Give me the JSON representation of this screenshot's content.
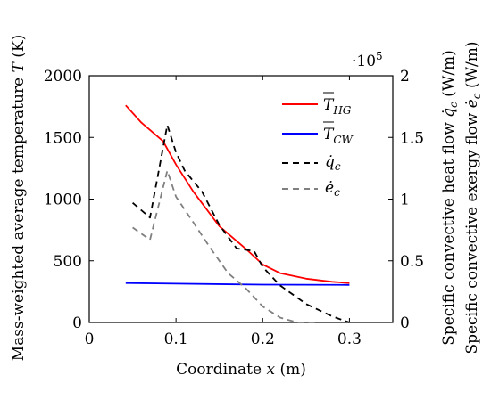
{
  "chart_data": {
    "type": "line",
    "title": "",
    "xlabel": "Coordinate x (m)",
    "ylabel_left": "Mass-weighted average temperature T̄ (K)",
    "ylabel_right_1": "Specific convective heat flow q̇c (W/m)",
    "ylabel_right_2": "Specific convective exergy flow ėc (W/m)",
    "right_axis_multiplier": "·10^5",
    "xlim": [
      0,
      0.35
    ],
    "ylim_left": [
      0,
      2000
    ],
    "ylim_right": [
      0,
      2
    ],
    "x_ticks": [
      "0",
      "0.1",
      "0.2",
      "0.3"
    ],
    "y_ticks_left": [
      "0",
      "500",
      "1000",
      "1500",
      "2000"
    ],
    "y_ticks_right": [
      "0",
      "0.5",
      "1",
      "1.5",
      "2"
    ],
    "grid": false,
    "legend_position": "top-right",
    "colors": {
      "T_HG": "#ff0000",
      "T_CW": "#0000ff",
      "q_c": "#000000",
      "e_c": "#808080"
    },
    "series": [
      {
        "name": "T̄HG",
        "axis": "left",
        "style": "solid",
        "x": [
          0.042,
          0.06,
          0.085,
          0.1,
          0.12,
          0.15,
          0.18,
          0.2,
          0.22,
          0.25,
          0.28,
          0.3
        ],
        "y": [
          1760,
          1620,
          1470,
          1280,
          1060,
          780,
          600,
          470,
          400,
          355,
          330,
          320
        ]
      },
      {
        "name": "T̄CW",
        "axis": "left",
        "style": "solid",
        "x": [
          0.042,
          0.1,
          0.2,
          0.3
        ],
        "y": [
          320,
          315,
          307,
          305
        ]
      },
      {
        "name": "q̇c",
        "axis": "right",
        "style": "dashed",
        "x": [
          0.05,
          0.07,
          0.09,
          0.1,
          0.11,
          0.13,
          0.15,
          0.17,
          0.19,
          0.2,
          0.22,
          0.25,
          0.28,
          0.3
        ],
        "y": [
          0.97,
          0.85,
          1.6,
          1.38,
          1.23,
          1.06,
          0.79,
          0.6,
          0.58,
          0.45,
          0.3,
          0.15,
          0.05,
          0.0
        ]
      },
      {
        "name": "ėc",
        "axis": "right",
        "style": "dashed",
        "x": [
          0.05,
          0.07,
          0.09,
          0.1,
          0.12,
          0.14,
          0.16,
          0.18,
          0.2,
          0.22,
          0.24,
          0.26
        ],
        "y": [
          0.77,
          0.67,
          1.23,
          1.02,
          0.81,
          0.6,
          0.4,
          0.28,
          0.13,
          0.04,
          0.0,
          0.0
        ]
      }
    ]
  }
}
